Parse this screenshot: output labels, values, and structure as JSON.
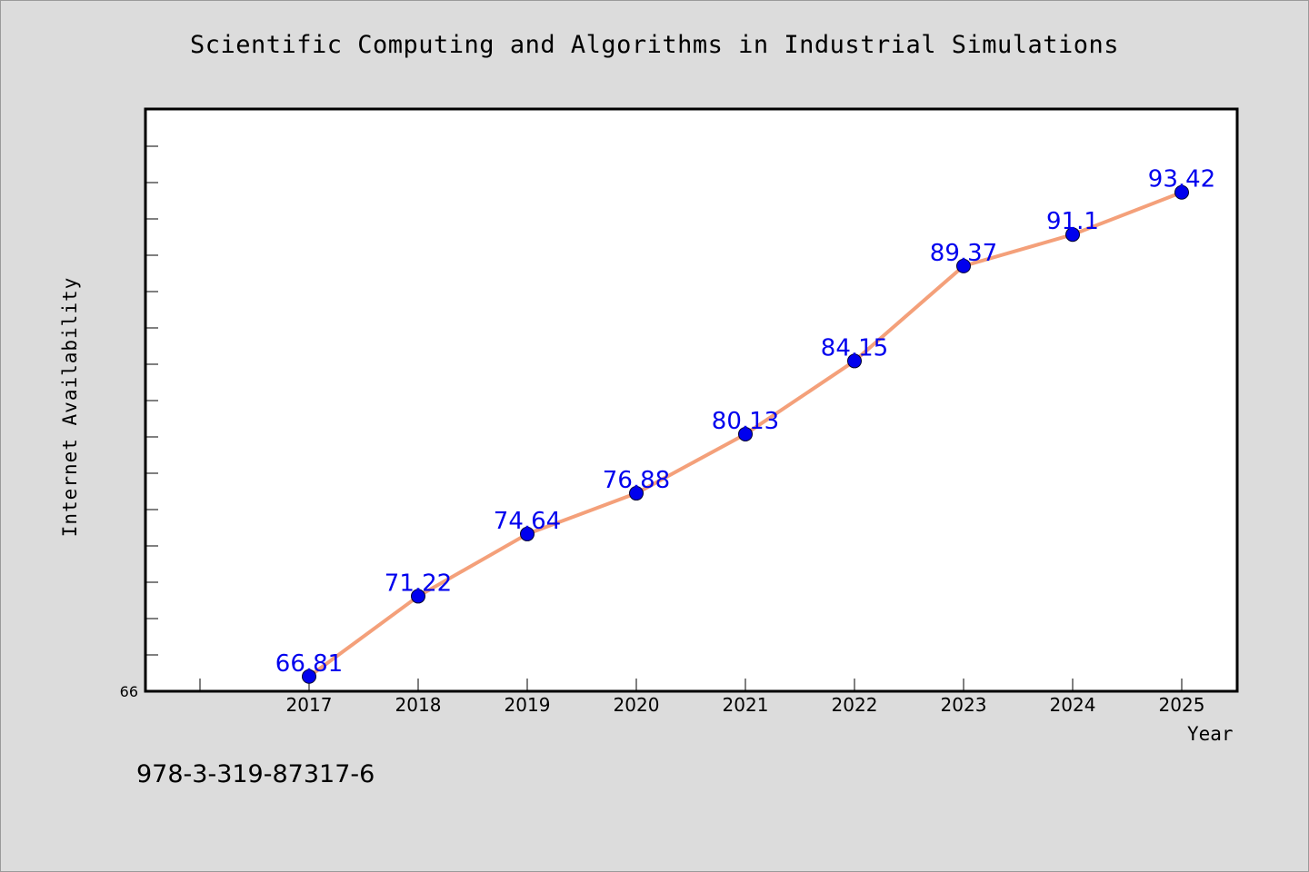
{
  "chart_data": {
    "type": "line",
    "title": "Scientific Computing and Algorithms in Industrial Simulations",
    "xlabel": "Year",
    "ylabel": "Internet Availability",
    "x": [
      "2017",
      "2018",
      "2019",
      "2020",
      "2021",
      "2022",
      "2023",
      "2024",
      "2025"
    ],
    "series": [
      {
        "values": [
          66.81,
          71.22,
          74.64,
          76.88,
          80.13,
          84.15,
          89.37,
          91.1,
          93.42
        ]
      }
    ],
    "data_labels": [
      "66.81",
      "71.22",
      "74.64",
      "76.88",
      "80.13",
      "84.15",
      "89.37",
      "91.1",
      "93.42"
    ],
    "ylim": [
      66,
      98
    ],
    "ytick_labels": [
      "66"
    ],
    "grid": false,
    "colors": {
      "line": "#f4a07a",
      "marker": "#0000ee",
      "label": "#0000ee",
      "background": "#dcdcdc",
      "plot_background": "#ffffff"
    }
  },
  "footer": {
    "isbn": "978-3-319-87317-6"
  }
}
